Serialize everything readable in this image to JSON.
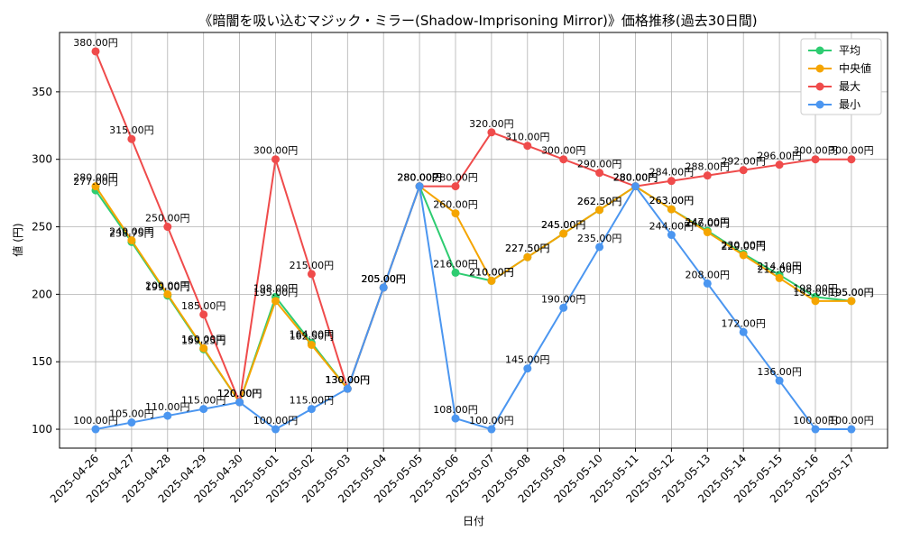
{
  "chart_data": {
    "type": "line",
    "title": "《暗闇を吸い込むマジック・ミラー(Shadow-Imprisoning Mirror)》価格推移(過去30日間)",
    "xlabel": "日付",
    "ylabel": "値 (円)",
    "categories": [
      "2025-04-26",
      "2025-04-27",
      "2025-04-28",
      "2025-04-29",
      "2025-04-30",
      "2025-05-01",
      "2025-05-02",
      "2025-05-03",
      "2025-05-04",
      "2025-05-05",
      "2025-05-06",
      "2025-05-07",
      "2025-05-08",
      "2025-05-09",
      "2025-05-10",
      "2025-05-11",
      "2025-05-12",
      "2025-05-13",
      "2025-05-14",
      "2025-05-15",
      "2025-05-16",
      "2025-05-17"
    ],
    "yticks": [
      100,
      150,
      200,
      250,
      300,
      350
    ],
    "ylim": [
      86.0,
      394.0
    ],
    "grid": true,
    "legend_position": "top-right",
    "value_suffix": "円",
    "series": [
      {
        "name": "平均",
        "color": "#2ecc71",
        "values": [
          277.0,
          238.75,
          199.0,
          159.25,
          120.0,
          198.0,
          164.0,
          130.0,
          205.0,
          280.0,
          216.0,
          210.0,
          227.5,
          245.0,
          262.5,
          280.0,
          263.0,
          247.0,
          230.0,
          214.4,
          198.0,
          195.0
        ]
      },
      {
        "name": "中央値",
        "color": "#f5a500",
        "values": [
          280.0,
          240.0,
          200.0,
          160.0,
          120.0,
          195.0,
          162.5,
          130.0,
          205.0,
          280.0,
          260.0,
          210.0,
          227.5,
          245.0,
          262.5,
          280.0,
          263.0,
          246.0,
          229.0,
          212.0,
          195.0,
          195.0
        ]
      },
      {
        "name": "最大",
        "color": "#ef4b4b",
        "values": [
          380.0,
          315.0,
          250.0,
          185.0,
          120.0,
          300.0,
          215.0,
          130.0,
          205.0,
          280.0,
          280.0,
          320.0,
          310.0,
          300.0,
          290.0,
          280.0,
          284.0,
          288.0,
          292.0,
          296.0,
          300.0,
          300.0
        ]
      },
      {
        "name": "最小",
        "color": "#4b96f0",
        "values": [
          100.0,
          105.0,
          110.0,
          115.0,
          120.0,
          100.0,
          115.0,
          130.0,
          205.0,
          280.0,
          108.0,
          100.0,
          145.0,
          190.0,
          235.0,
          280.0,
          244.0,
          208.0,
          172.0,
          136.0,
          100.0,
          100.0
        ]
      }
    ]
  }
}
